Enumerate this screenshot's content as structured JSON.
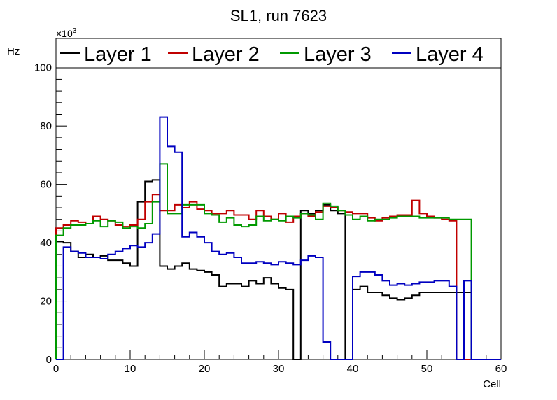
{
  "chart_data": {
    "type": "line",
    "title": "SL1, run 7623",
    "xlabel": "Cell",
    "ylabel": "Hz",
    "y_exponent_label": "×10",
    "y_exponent": "3",
    "xlim": [
      0,
      60
    ],
    "ylim": [
      0,
      110
    ],
    "x_ticks": [
      0,
      10,
      20,
      30,
      40,
      50,
      60
    ],
    "y_ticks": [
      0,
      20,
      40,
      60,
      80,
      100
    ],
    "legend_position": "top",
    "series": [
      {
        "name": "Layer 1",
        "color": "#000000",
        "values": [
          40.5,
          40,
          37,
          35,
          36,
          35,
          35.5,
          34,
          34,
          33,
          32,
          54,
          61,
          61.5,
          32,
          31,
          32,
          33,
          31,
          30.5,
          30,
          29,
          25,
          26,
          26,
          25,
          27,
          26,
          28,
          26,
          24.5,
          24,
          0,
          51,
          50,
          51,
          53,
          51,
          50,
          0,
          24,
          25,
          23,
          23,
          22,
          21,
          20.5,
          21,
          22,
          23,
          23,
          23,
          23,
          23,
          23,
          23,
          0,
          0,
          0,
          0
        ]
      },
      {
        "name": "Layer 2",
        "color": "#c00000",
        "values": [
          45,
          46,
          47.5,
          47,
          46.5,
          49,
          48,
          47.5,
          46,
          45.5,
          46,
          48,
          54,
          56.5,
          51,
          51,
          53,
          52,
          54,
          51.5,
          51,
          50,
          50,
          51,
          49.5,
          49.5,
          48,
          51,
          49,
          48,
          50,
          47,
          49,
          50,
          49,
          50.5,
          52.5,
          52,
          51,
          50.5,
          50,
          50,
          48.5,
          47.5,
          48.5,
          49,
          49.5,
          49.5,
          54.5,
          50,
          49,
          48.5,
          48,
          47.5,
          0,
          0,
          0,
          0,
          0,
          0
        ]
      },
      {
        "name": "Layer 3",
        "color": "#009900",
        "values": [
          42.5,
          45,
          46,
          46,
          46.5,
          47.5,
          45.5,
          47.5,
          47,
          45,
          45.5,
          45,
          46.5,
          54,
          67,
          50,
          50,
          53,
          53,
          53,
          50,
          49.5,
          47,
          48.5,
          46,
          45.5,
          46,
          49,
          47.5,
          48,
          47.5,
          49,
          48.5,
          50,
          49.5,
          48,
          53.5,
          52.5,
          51,
          49.5,
          48,
          49,
          47.5,
          48,
          48,
          48.5,
          49,
          49,
          49,
          48.5,
          48.5,
          48.5,
          48.5,
          48,
          48,
          48,
          0,
          0,
          0,
          0
        ]
      },
      {
        "name": "Layer 4",
        "color": "#0000c0",
        "values": [
          0,
          38.5,
          37,
          36.5,
          35,
          35,
          34.5,
          36,
          37,
          38,
          39,
          38.5,
          40,
          43,
          83,
          73,
          71,
          42,
          43.5,
          42,
          40,
          37,
          36,
          36.5,
          35,
          33,
          33,
          33.5,
          33,
          32.5,
          33.5,
          33,
          32.5,
          34,
          35.5,
          35,
          6,
          0,
          0,
          0,
          28.5,
          30,
          30,
          29,
          27,
          25.5,
          26,
          25.5,
          26,
          26.5,
          26.5,
          27,
          27,
          25,
          0,
          27,
          0,
          0,
          0,
          0
        ]
      }
    ]
  }
}
